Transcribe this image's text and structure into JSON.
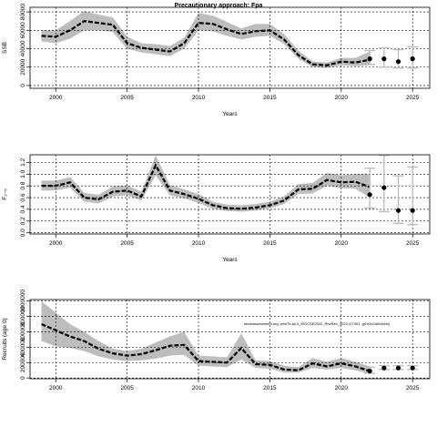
{
  "title": "Precautionary approach: Fpa",
  "note": "stockassessment.org, who7b.ss.4_WGCSE2022_RevRec_2023 (17401, git:e2c2a0c9cbb)",
  "colors": {
    "band": "#bdbdbd",
    "line": "#000000",
    "grid": "#000000"
  },
  "chart_data": [
    {
      "type": "line",
      "ylabel": "SSB",
      "xlabel": "Years",
      "xlim": [
        1998.2,
        2026.2
      ],
      "ylim": [
        -3000,
        85000
      ],
      "xticks": [
        2000,
        2005,
        2010,
        2015,
        2020,
        2025
      ],
      "yticks": [
        0,
        20000,
        40000,
        60000,
        80000
      ],
      "ytick_labels": [
        "0",
        "20000",
        "40000",
        "60000",
        "80000"
      ],
      "grid": true,
      "x": [
        1999,
        2000,
        2001,
        2002,
        2003,
        2004,
        2005,
        2006,
        2007,
        2008,
        2009,
        2010,
        2011,
        2012,
        2013,
        2014,
        2015,
        2016,
        2017,
        2018,
        2019,
        2020,
        2021,
        2022
      ],
      "estimate": [
        54000,
        53000,
        60000,
        70000,
        68000,
        66000,
        46000,
        41000,
        39000,
        37000,
        46000,
        68000,
        67000,
        61000,
        56000,
        59000,
        60000,
        50000,
        33000,
        23000,
        22000,
        26000,
        25000,
        28000
      ],
      "lower": [
        48000,
        46000,
        51000,
        60000,
        60000,
        58000,
        40000,
        36000,
        34000,
        32000,
        40000,
        60000,
        59000,
        54000,
        50000,
        53000,
        54000,
        45000,
        29000,
        20000,
        19000,
        22000,
        21000,
        22000
      ],
      "upper": [
        60000,
        60000,
        70000,
        81000,
        77000,
        74000,
        53000,
        46000,
        45000,
        43000,
        52000,
        79000,
        76000,
        69000,
        62000,
        67000,
        67000,
        56000,
        38000,
        26000,
        25000,
        30000,
        30000,
        37000
      ],
      "forecast": [
        {
          "x": 2022,
          "y": 29000,
          "lower": 23000,
          "upper": 38000
        },
        {
          "x": 2023,
          "y": 29000,
          "lower": 20000,
          "upper": 41000
        },
        {
          "x": 2024,
          "y": 26000,
          "lower": 19000,
          "upper": 39000
        },
        {
          "x": 2025,
          "y": 29000,
          "lower": 19000,
          "upper": 42000
        }
      ]
    },
    {
      "type": "line",
      "ylabel": "F₂₋₅",
      "xlabel": "Years",
      "xlim": [
        1998.2,
        2026.2
      ],
      "ylim": [
        -0.02,
        1.33
      ],
      "xticks": [
        2000,
        2005,
        2010,
        2015,
        2020,
        2025
      ],
      "yticks": [
        0.0,
        0.2,
        0.4,
        0.6,
        0.8,
        1.0,
        1.2
      ],
      "ytick_labels": [
        "0.0",
        "0.2",
        "0.4",
        "0.6",
        "0.8",
        "1.0",
        "1.2"
      ],
      "grid": true,
      "x": [
        1999,
        2000,
        2001,
        2002,
        2003,
        2004,
        2005,
        2006,
        2007,
        2008,
        2009,
        2010,
        2011,
        2012,
        2013,
        2014,
        2015,
        2016,
        2017,
        2018,
        2019,
        2020,
        2021,
        2022
      ],
      "estimate": [
        0.8,
        0.8,
        0.86,
        0.6,
        0.57,
        0.7,
        0.72,
        0.62,
        1.15,
        0.72,
        0.66,
        0.58,
        0.47,
        0.42,
        0.41,
        0.43,
        0.47,
        0.55,
        0.74,
        0.75,
        0.9,
        0.86,
        0.87,
        0.78
      ],
      "lower": [
        0.72,
        0.72,
        0.77,
        0.53,
        0.5,
        0.62,
        0.64,
        0.55,
        0.98,
        0.64,
        0.59,
        0.51,
        0.41,
        0.37,
        0.36,
        0.38,
        0.42,
        0.49,
        0.66,
        0.67,
        0.8,
        0.76,
        0.75,
        0.6
      ],
      "upper": [
        0.89,
        0.89,
        0.95,
        0.68,
        0.65,
        0.79,
        0.81,
        0.7,
        1.32,
        0.81,
        0.74,
        0.66,
        0.53,
        0.48,
        0.47,
        0.49,
        0.53,
        0.62,
        0.83,
        0.85,
        1.02,
        0.98,
        1.0,
        1.0
      ],
      "forecast": [
        {
          "x": 2022,
          "y": 0.65,
          "lower": 0.42,
          "upper": 1.1
        },
        {
          "x": 2023,
          "y": 0.77,
          "lower": 0.36,
          "upper": 1.32
        },
        {
          "x": 2024,
          "y": 0.38,
          "lower": 0.16,
          "upper": 0.97
        },
        {
          "x": 2025,
          "y": 0.38,
          "lower": 0.14,
          "upper": 1.12
        }
      ]
    },
    {
      "type": "line",
      "ylabel": "Recruits (age 0)",
      "xlabel": "",
      "xlim": [
        1998.2,
        2026.2
      ],
      "ylim": [
        -10000,
        1020000
      ],
      "xticks": [
        2000,
        2005,
        2010,
        2015,
        2020,
        2025
      ],
      "yticks": [
        0,
        200000,
        400000,
        600000,
        800000,
        1000000
      ],
      "ytick_labels": [
        "0",
        "200000",
        "400000",
        "600000",
        "800000",
        "1000000"
      ],
      "grid": true,
      "x": [
        1999,
        2000,
        2001,
        2002,
        2003,
        2004,
        2005,
        2006,
        2007,
        2008,
        2009,
        2010,
        2011,
        2012,
        2013,
        2014,
        2015,
        2016,
        2017,
        2018,
        2019,
        2020,
        2021,
        2022
      ],
      "estimate": [
        700000,
        620000,
        540000,
        480000,
        380000,
        320000,
        290000,
        310000,
        360000,
        420000,
        430000,
        220000,
        210000,
        200000,
        390000,
        180000,
        170000,
        110000,
        100000,
        190000,
        150000,
        190000,
        150000,
        90000
      ],
      "lower": [
        480000,
        410000,
        390000,
        350000,
        280000,
        240000,
        220000,
        230000,
        250000,
        290000,
        300000,
        160000,
        150000,
        140000,
        240000,
        130000,
        120000,
        70000,
        70000,
        130000,
        110000,
        130000,
        100000,
        50000
      ],
      "upper": [
        1000000,
        850000,
        700000,
        600000,
        480000,
        380000,
        350000,
        380000,
        460000,
        540000,
        600000,
        290000,
        280000,
        270000,
        580000,
        230000,
        220000,
        160000,
        140000,
        260000,
        210000,
        260000,
        210000,
        150000
      ],
      "forecast": [
        {
          "x": 2022,
          "y": 90000,
          "lower": 60000,
          "upper": 140000
        },
        {
          "x": 2023,
          "y": 130000,
          "lower": 110000,
          "upper": 160000
        },
        {
          "x": 2024,
          "y": 130000,
          "lower": 110000,
          "upper": 160000
        },
        {
          "x": 2025,
          "y": 130000,
          "lower": 110000,
          "upper": 160000
        }
      ]
    }
  ]
}
